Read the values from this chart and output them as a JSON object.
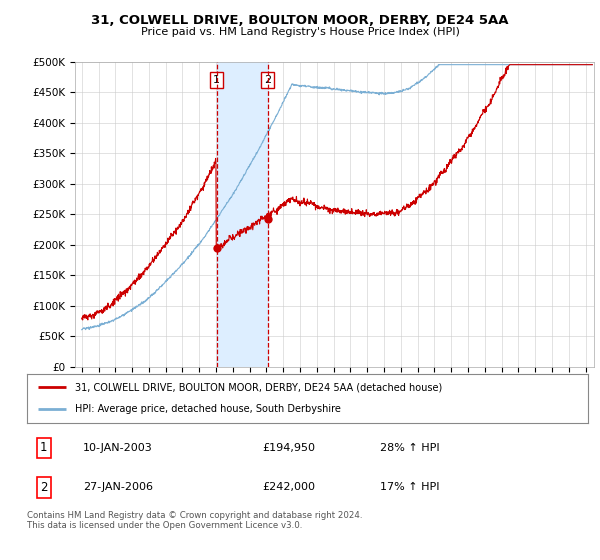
{
  "title": "31, COLWELL DRIVE, BOULTON MOOR, DERBY, DE24 5AA",
  "subtitle": "Price paid vs. HM Land Registry's House Price Index (HPI)",
  "ylim": [
    0,
    500000
  ],
  "yticks": [
    0,
    50000,
    100000,
    150000,
    200000,
    250000,
    300000,
    350000,
    400000,
    450000,
    500000
  ],
  "ytick_labels": [
    "£0",
    "£50K",
    "£100K",
    "£150K",
    "£200K",
    "£250K",
    "£300K",
    "£350K",
    "£400K",
    "£450K",
    "£500K"
  ],
  "sale1_date": 2003.04,
  "sale1_price": 194950,
  "sale2_date": 2006.08,
  "sale2_price": 242000,
  "red_line_color": "#cc0000",
  "blue_line_color": "#7bafd4",
  "highlight_color": "#ddeeff",
  "legend_red_label": "31, COLWELL DRIVE, BOULTON MOOR, DERBY, DE24 5AA (detached house)",
  "legend_blue_label": "HPI: Average price, detached house, South Derbyshire",
  "table_row1": [
    "1",
    "10-JAN-2003",
    "£194,950",
    "28% ↑ HPI"
  ],
  "table_row2": [
    "2",
    "27-JAN-2006",
    "£242,000",
    "17% ↑ HPI"
  ],
  "footer": "Contains HM Land Registry data © Crown copyright and database right 2024.\nThis data is licensed under the Open Government Licence v3.0.",
  "background_color": "#ffffff",
  "grid_color": "#cccccc",
  "xlim_start": 1994.6,
  "xlim_end": 2025.5
}
